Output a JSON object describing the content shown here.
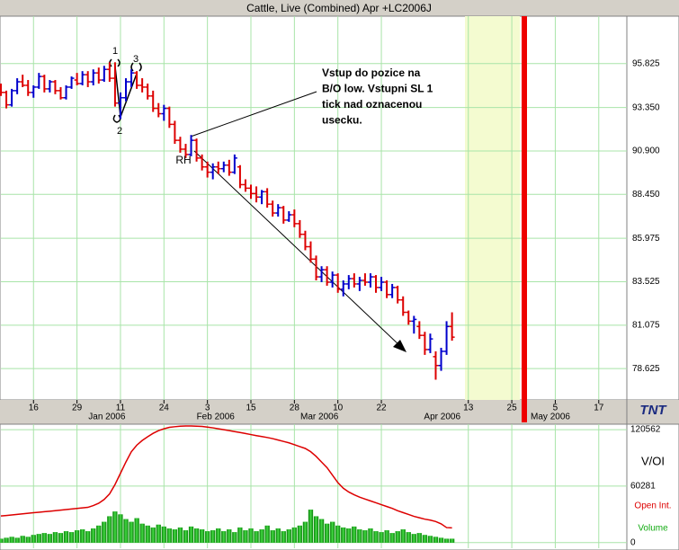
{
  "chart_data": [
    {
      "type": "ohlc",
      "title": "Cattle, Live (Combined) Apr +LC2006J",
      "xlim": [
        0,
        115
      ],
      "xticks": [
        {
          "value": 6,
          "label": "16"
        },
        {
          "value": 14,
          "label": "29"
        },
        {
          "value": 22,
          "label": "11"
        },
        {
          "value": 30,
          "label": "24"
        },
        {
          "value": 38,
          "label": "3"
        },
        {
          "value": 46,
          "label": "15"
        },
        {
          "value": 54,
          "label": "28"
        },
        {
          "value": 62,
          "label": "10"
        },
        {
          "value": 70,
          "label": "22"
        },
        {
          "value": 86,
          "label": "13"
        },
        {
          "value": 94,
          "label": "25"
        },
        {
          "value": 102,
          "label": "5"
        },
        {
          "value": 110,
          "label": "17"
        }
      ],
      "month_labels": [
        {
          "value": 19.5,
          "label": "Jan 2006"
        },
        {
          "value": 39.5,
          "label": "Feb 2006"
        },
        {
          "value": 58.6,
          "label": "Mar 2006"
        },
        {
          "value": 81.2,
          "label": "Apr 2006"
        },
        {
          "value": 101.1,
          "label": "May 2006"
        }
      ],
      "ylim": [
        76.86,
        98.5
      ],
      "yticks": [
        {
          "value": 78.625,
          "label": "78.625"
        },
        {
          "value": 81.075,
          "label": "81.075"
        },
        {
          "value": 83.525,
          "label": "83.525"
        },
        {
          "value": 85.975,
          "label": "85.975"
        },
        {
          "value": 88.45,
          "label": "88.450"
        },
        {
          "value": 90.9,
          "label": "90.900"
        },
        {
          "value": 93.35,
          "label": "93.350"
        },
        {
          "value": 95.825,
          "label": "95.825"
        }
      ],
      "grid": true,
      "up_color": "#0000cc",
      "down_color": "#dd0000",
      "open": [
        94.5,
        94.2,
        93.5,
        94.3,
        94.8,
        94.6,
        94.2,
        94.5,
        95.1,
        94.4,
        94.8,
        94.3,
        93.9,
        94.5,
        94.9,
        94.7,
        95.2,
        94.8,
        95.3,
        94.9,
        95.5,
        95.0,
        93.6,
        93.9,
        94.8,
        95.3,
        94.6,
        94.5,
        94.0,
        93.3,
        93.0,
        93.3,
        92.4,
        91.5,
        91.0,
        90.7,
        91.5,
        90.5,
        90.0,
        89.7,
        90.0,
        89.9,
        90.1,
        89.7,
        90.0,
        89.0,
        88.8,
        88.5,
        88.3,
        88.6,
        87.9,
        87.4,
        87.7,
        87.0,
        87.3,
        86.8,
        86.2,
        85.5,
        84.8,
        83.8,
        84.2,
        83.5,
        83.9,
        83.1,
        83.4,
        83.7,
        83.4,
        83.6,
        83.5,
        83.8,
        83.2,
        83.5,
        82.8,
        83.2,
        82.5,
        81.8,
        81.3,
        81.0,
        80.5,
        79.7,
        79.3,
        78.8,
        79.6,
        81.0
      ],
      "high": [
        94.7,
        94.3,
        94.4,
        95.0,
        95.2,
        94.9,
        94.6,
        95.3,
        95.2,
        94.9,
        94.9,
        94.5,
        94.6,
        95.1,
        95.3,
        95.4,
        95.4,
        95.5,
        95.6,
        95.7,
        95.9,
        95.9,
        94.2,
        95.0,
        95.5,
        95.4,
        95.0,
        94.7,
        94.3,
        93.6,
        93.5,
        93.4,
        92.6,
        91.7,
        91.3,
        91.8,
        91.6,
        90.7,
        90.3,
        90.2,
        90.3,
        90.3,
        90.4,
        90.7,
        90.1,
        89.3,
        89.0,
        88.9,
        88.7,
        88.8,
        88.1,
        87.9,
        87.8,
        87.5,
        87.6,
        87.0,
        86.4,
        85.8,
        85.0,
        84.4,
        84.4,
        84.1,
        84.0,
        83.6,
        83.9,
        84.0,
        83.8,
        84.0,
        84.0,
        83.9,
        83.8,
        83.6,
        83.4,
        83.3,
        82.7,
        81.9,
        81.6,
        81.3,
        80.7,
        80.6,
        79.6,
        79.8,
        81.3,
        81.8
      ],
      "low": [
        94.0,
        93.3,
        93.4,
        94.1,
        94.5,
        94.0,
        93.9,
        94.4,
        94.2,
        94.2,
        94.1,
        93.8,
        93.8,
        94.4,
        94.6,
        94.6,
        94.5,
        94.6,
        94.7,
        94.8,
        94.8,
        93.4,
        92.7,
        93.7,
        94.5,
        94.4,
        94.2,
        93.8,
        93.1,
        92.8,
        92.6,
        92.2,
        91.3,
        90.8,
        90.5,
        90.6,
        90.3,
        89.8,
        89.4,
        89.3,
        89.6,
        89.7,
        89.5,
        89.6,
        88.8,
        88.6,
        88.2,
        88.0,
        87.9,
        87.7,
        87.2,
        87.2,
        86.8,
        86.9,
        86.6,
        86.0,
        85.3,
        84.6,
        83.6,
        83.5,
        83.3,
        83.2,
        82.9,
        82.7,
        83.1,
        83.2,
        83.0,
        83.3,
        83.2,
        82.9,
        83.0,
        82.6,
        82.6,
        82.3,
        81.6,
        81.1,
        80.6,
        80.3,
        79.4,
        79.5,
        78.0,
        78.5,
        79.4,
        80.2
      ],
      "close": [
        94.2,
        93.5,
        94.3,
        94.8,
        94.6,
        94.2,
        94.5,
        95.1,
        94.4,
        94.8,
        94.3,
        93.9,
        94.5,
        95.0,
        94.7,
        95.2,
        94.8,
        95.3,
        94.9,
        95.5,
        95.0,
        93.6,
        93.9,
        94.8,
        95.3,
        94.6,
        94.5,
        94.0,
        93.3,
        93.0,
        93.3,
        92.4,
        91.5,
        91.0,
        90.7,
        91.5,
        90.5,
        90.0,
        89.7,
        90.0,
        89.9,
        90.1,
        89.7,
        90.5,
        89.0,
        88.8,
        88.5,
        88.3,
        88.6,
        87.9,
        87.4,
        87.7,
        87.0,
        87.3,
        86.8,
        86.2,
        85.5,
        84.8,
        83.8,
        84.2,
        83.5,
        83.9,
        83.1,
        83.4,
        83.7,
        83.4,
        83.6,
        83.5,
        83.8,
        83.2,
        83.5,
        82.8,
        83.2,
        82.5,
        81.8,
        81.3,
        81.4,
        80.5,
        79.7,
        80.3,
        78.8,
        79.6,
        81.0,
        80.4
      ],
      "annotations": [
        "1",
        "2",
        "3",
        "RH"
      ],
      "note": [
        "Vstup do pozice na",
        "B/O low. Vstupni SL 1",
        "tick nad oznacenou",
        "usecku."
      ],
      "logo": "TNT"
    },
    {
      "type": "volume_oi",
      "ylabel": "V/OI",
      "xlim": [
        0,
        115
      ],
      "ylim": [
        -6000,
        126400
      ],
      "yticks": [
        0,
        60281,
        120562
      ],
      "grid": true,
      "series": [
        {
          "name": "Open Int.",
          "color": "#dd0000",
          "kind": "line",
          "values": [
            28400,
            28900,
            29500,
            30100,
            30700,
            31300,
            31900,
            32400,
            33000,
            33500,
            34000,
            34600,
            35200,
            35800,
            36400,
            37000,
            37600,
            39500,
            42000,
            46000,
            52000,
            62000,
            74000,
            86000,
            97000,
            104000,
            109000,
            113000,
            116600,
            119500,
            121500,
            123000,
            123700,
            124200,
            124500,
            124500,
            124300,
            124000,
            123300,
            122500,
            121500,
            120500,
            119600,
            118500,
            117500,
            116400,
            115300,
            114200,
            113200,
            112200,
            111000,
            109500,
            108000,
            106500,
            104500,
            102500,
            100500,
            97000,
            92000,
            86000,
            80000,
            72000,
            64000,
            58000,
            54000,
            51000,
            48500,
            46500,
            44500,
            42500,
            40500,
            38500,
            36500,
            34000,
            32000,
            30000,
            28000,
            26500,
            25000,
            24000,
            22500,
            20000,
            16000,
            15700
          ]
        },
        {
          "name": "Volume",
          "color": "#11aa11",
          "kind": "bar",
          "values": [
            4000,
            5000,
            6000,
            5000,
            7000,
            6000,
            8000,
            9000,
            10000,
            9000,
            11000,
            10000,
            12000,
            11000,
            13000,
            14000,
            12000,
            15000,
            18000,
            22000,
            28000,
            33000,
            30000,
            25000,
            22000,
            26000,
            20000,
            18000,
            16000,
            19000,
            17000,
            15000,
            14000,
            16000,
            13000,
            17000,
            15000,
            14000,
            12000,
            13000,
            15000,
            12000,
            14000,
            11000,
            16000,
            13000,
            15000,
            12000,
            14000,
            18000,
            13000,
            15000,
            12000,
            14000,
            16000,
            18000,
            22000,
            35000,
            28000,
            25000,
            20000,
            22000,
            18000,
            16000,
            15000,
            17000,
            14000,
            13000,
            15000,
            12000,
            11000,
            13000,
            10000,
            12000,
            14000,
            11000,
            9000,
            10000,
            8000,
            7000,
            6000,
            5000,
            4000,
            4000
          ]
        }
      ]
    }
  ]
}
